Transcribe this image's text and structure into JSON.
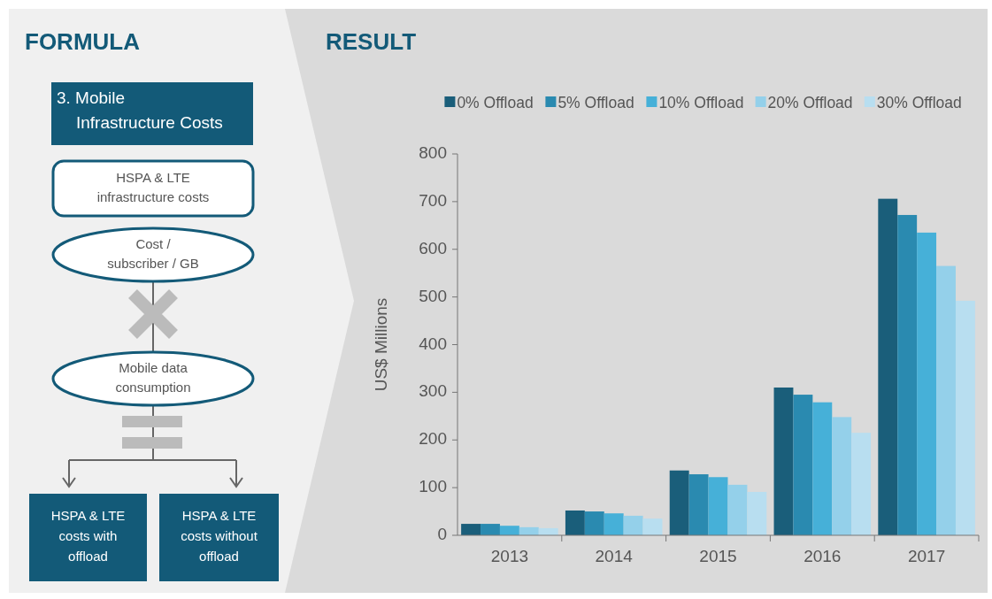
{
  "chart_data": [
    {
      "type": "other",
      "title": "FORMULA",
      "annotations": [
        "3. Mobile\nInfrastructure Costs",
        "HSPA & LTE\ninfrastructure costs",
        "Cost /\nsubscriber / GB",
        "Mobile data\nconsumption",
        "HSPA & LTE\ncosts with\noffload",
        "HSPA & LTE\ncosts without\noffload"
      ]
    },
    {
      "type": "bar",
      "title": "RESULT",
      "ylabel": "US$ Millions",
      "categories": [
        "2013",
        "2014",
        "2015",
        "2016",
        "2017"
      ],
      "series": [
        {
          "name": "0% Offload",
          "color": "#1a5e7a",
          "values": [
            24,
            52,
            136,
            310,
            706
          ]
        },
        {
          "name": "5% Offload",
          "color": "#2a8ab0",
          "values": [
            24,
            50,
            128,
            295,
            672
          ]
        },
        {
          "name": "10% Offload",
          "color": "#46b0d8",
          "values": [
            20,
            46,
            122,
            279,
            635
          ]
        },
        {
          "name": "20% Offload",
          "color": "#94d0ea",
          "values": [
            17,
            41,
            106,
            248,
            565
          ]
        },
        {
          "name": "30% Offload",
          "color": "#b8def0",
          "values": [
            15,
            35,
            91,
            215,
            492
          ]
        }
      ],
      "ylim": [
        0,
        800
      ],
      "yticks": [
        0,
        100,
        200,
        300,
        400,
        500,
        600,
        700,
        800
      ],
      "grid": false,
      "legend": "top right"
    }
  ]
}
